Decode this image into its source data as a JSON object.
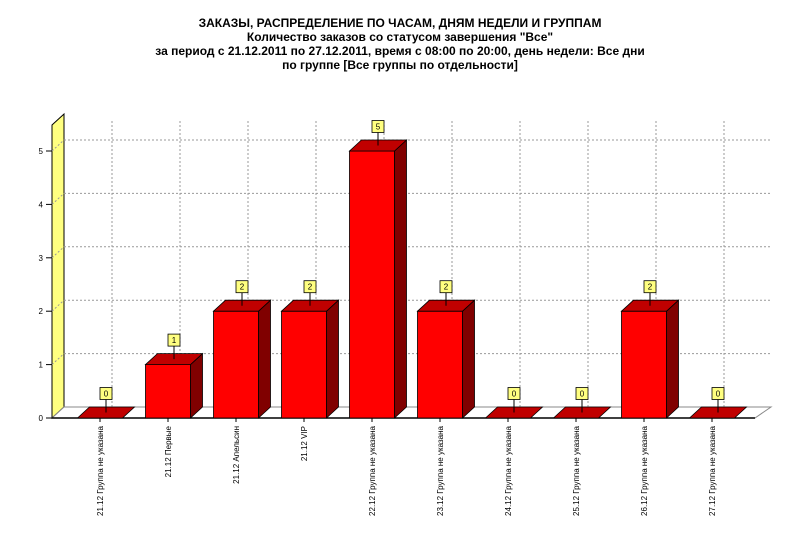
{
  "header": {
    "title": "ЗАКАЗЫ, РАСПРЕДЕЛЕНИЕ ПО ЧАСАМ, ДНЯМ НЕДЕЛИ И ГРУППАМ",
    "subtitle1": "Количество заказов со статусом завершения \"Все\"",
    "subtitle2": "за период с 21.12.2011 по 27.12.2011, время с 08:00 по 20:00, день недели: Все дни",
    "subtitle3": "по группе [Все группы по отдельности]"
  },
  "colors": {
    "bar_front": "#ff0000",
    "bar_top": "#c00000",
    "bar_side": "#800000",
    "wall": "#ffff80",
    "label_bg": "#ffff80"
  },
  "chart_data": {
    "type": "bar",
    "title": "ЗАКАЗЫ, РАСПРЕДЕЛЕНИЕ ПО ЧАСАМ, ДНЯМ НЕДЕЛИ И ГРУППАМ",
    "subtitle": "Количество заказов со статусом завершения \"Все\"",
    "categories": [
      "21.12 Группа не указана",
      "21.12 Первые",
      "21.12 Апельсин",
      "21.12 VIP",
      "22.12 Группа не указана",
      "23.12 Группа не указана",
      "24.12 Группа не указана",
      "25.12 Группа не указана",
      "26.12 Группа не указана",
      "27.12 Группа не указана"
    ],
    "values": [
      0,
      1,
      2,
      2,
      5,
      2,
      0,
      0,
      2,
      0
    ],
    "xlabel": "",
    "ylabel": "",
    "ylim": [
      0,
      5
    ],
    "yticks": [
      "0",
      "1",
      "2",
      "3",
      "4",
      "5"
    ],
    "grid": true,
    "style": "3d",
    "data_labels": true
  }
}
